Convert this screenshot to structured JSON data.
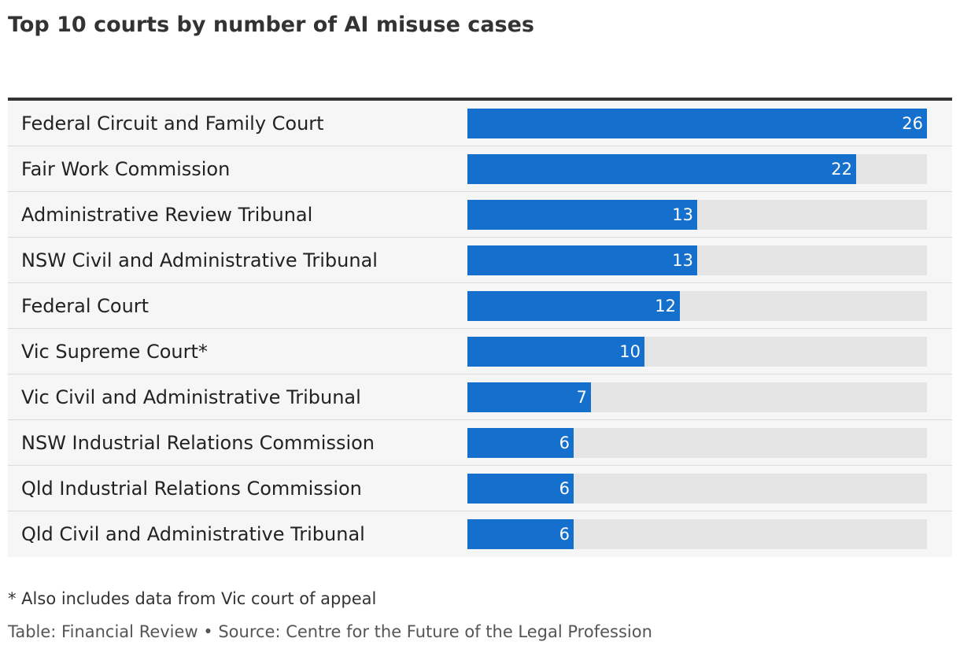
{
  "title": "Top 10 courts by number of AI misuse cases",
  "footnote": "* Also includes data from Vic court of appeal",
  "source": "Table: Financial Review • Source: Centre for the Future of the Legal Profession",
  "colors": {
    "bar": "#1470cc",
    "track": "#e4e4e4",
    "row_background": "#f6f6f6",
    "header_rule": "#333333"
  },
  "chart_data": {
    "type": "bar",
    "orientation": "horizontal",
    "categories": [
      "Federal Circuit and Family Court",
      "Fair Work Commission",
      "Administrative Review Tribunal",
      "NSW Civil and Administrative Tribunal",
      "Federal Court",
      "Vic Supreme Court*",
      "Vic Civil and Administrative Tribunal",
      "NSW Industrial Relations Commission",
      "Qld Industrial Relations Commission",
      "Qld Civil and Administrative Tribunal"
    ],
    "values": [
      26,
      22,
      13,
      13,
      12,
      10,
      7,
      6,
      6,
      6
    ],
    "xlim": [
      0,
      26
    ],
    "grid": false,
    "legend": "none"
  }
}
